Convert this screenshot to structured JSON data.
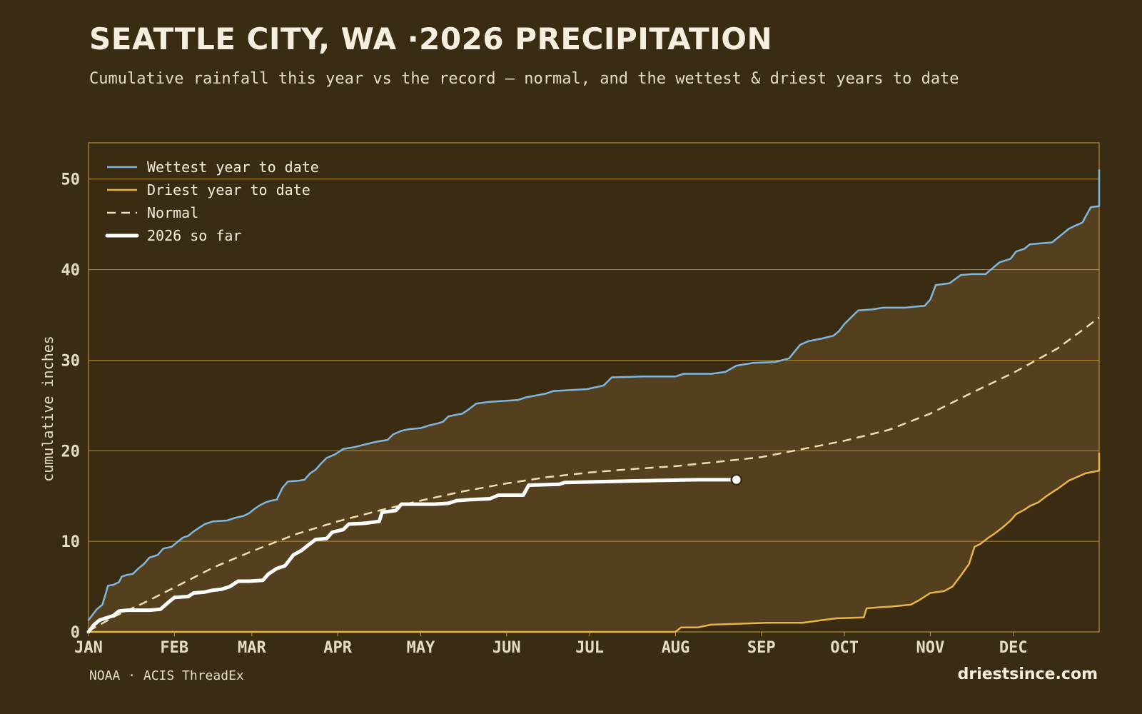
{
  "header": {
    "title": "SEATTLE CITY, WA ·2026 PRECIPITATION",
    "subtitle": "Cumulative rainfall this year vs the record — normal, and the wettest & driest years to date"
  },
  "footer": {
    "source": "NOAA · ACIS ThreadEx",
    "brand": "driestsince.com"
  },
  "colors": {
    "background": "#3a2c13",
    "band": "#54401e",
    "wettest": "#7fb7e0",
    "driest": "#e8b445",
    "normal": "#efdcb0",
    "current": "#ffffff",
    "grid": "#c9a23e"
  },
  "chart_data": {
    "type": "line",
    "title": "SEATTLE CITY, WA ·2026 PRECIPITATION",
    "ylabel": "cumulative inches",
    "xlabel": "",
    "ylim": [
      0,
      54
    ],
    "xlim": [
      0,
      365
    ],
    "grid": true,
    "legend_position": "top-left",
    "x_ticks": [
      {
        "day": 0,
        "label": "JAN"
      },
      {
        "day": 31,
        "label": "FEB"
      },
      {
        "day": 59,
        "label": "MAR"
      },
      {
        "day": 90,
        "label": "APR"
      },
      {
        "day": 120,
        "label": "MAY"
      },
      {
        "day": 151,
        "label": "JUN"
      },
      {
        "day": 181,
        "label": "JUL"
      },
      {
        "day": 212,
        "label": "AUG"
      },
      {
        "day": 243,
        "label": "SEP"
      },
      {
        "day": 273,
        "label": "OCT"
      },
      {
        "day": 304,
        "label": "NOV"
      },
      {
        "day": 334,
        "label": "DEC"
      }
    ],
    "y_ticks": [
      0,
      10,
      20,
      30,
      40,
      50
    ],
    "series": [
      {
        "name": "Wettest year to date",
        "key": "wettest",
        "style": "solid",
        "points": [
          [
            0,
            1.3
          ],
          [
            3,
            2.5
          ],
          [
            5,
            3
          ],
          [
            6,
            4
          ],
          [
            7,
            5.1
          ],
          [
            9,
            5.2
          ],
          [
            11,
            5.5
          ],
          [
            12,
            6.1
          ],
          [
            14,
            6.3
          ],
          [
            16,
            6.4
          ],
          [
            18,
            7
          ],
          [
            20,
            7.5
          ],
          [
            22,
            8.2
          ],
          [
            25,
            8.5
          ],
          [
            27,
            9.2
          ],
          [
            30,
            9.4
          ],
          [
            32,
            9.9
          ],
          [
            34,
            10.4
          ],
          [
            36,
            10.6
          ],
          [
            38,
            11.1
          ],
          [
            40,
            11.5
          ],
          [
            42,
            11.9
          ],
          [
            45,
            12.2
          ],
          [
            50,
            12.3
          ],
          [
            53,
            12.6
          ],
          [
            56,
            12.8
          ],
          [
            58,
            13.1
          ],
          [
            60,
            13.6
          ],
          [
            62,
            14
          ],
          [
            64,
            14.3
          ],
          [
            66,
            14.5
          ],
          [
            68,
            14.6
          ],
          [
            70,
            15.9
          ],
          [
            72,
            16.6
          ],
          [
            76,
            16.7
          ],
          [
            78,
            16.8
          ],
          [
            80,
            17.5
          ],
          [
            82,
            17.9
          ],
          [
            84,
            18.6
          ],
          [
            86,
            19.2
          ],
          [
            89,
            19.6
          ],
          [
            92,
            20.2
          ],
          [
            96,
            20.4
          ],
          [
            100,
            20.7
          ],
          [
            104,
            21
          ],
          [
            108,
            21.2
          ],
          [
            110,
            21.8
          ],
          [
            113,
            22.2
          ],
          [
            116,
            22.4
          ],
          [
            120,
            22.5
          ],
          [
            123,
            22.8
          ],
          [
            126,
            23
          ],
          [
            128,
            23.2
          ],
          [
            130,
            23.8
          ],
          [
            135,
            24.1
          ],
          [
            137,
            24.5
          ],
          [
            140,
            25.2
          ],
          [
            145,
            25.4
          ],
          [
            150,
            25.5
          ],
          [
            155,
            25.6
          ],
          [
            158,
            25.9
          ],
          [
            165,
            26.3
          ],
          [
            168,
            26.6
          ],
          [
            180,
            26.8
          ],
          [
            186,
            27.2
          ],
          [
            189,
            28.1
          ],
          [
            200,
            28.2
          ],
          [
            212,
            28.2
          ],
          [
            215,
            28.5
          ],
          [
            225,
            28.5
          ],
          [
            230,
            28.7
          ],
          [
            234,
            29.4
          ],
          [
            240,
            29.7
          ],
          [
            248,
            29.8
          ],
          [
            253,
            30.2
          ],
          [
            257,
            31.7
          ],
          [
            260,
            32.1
          ],
          [
            265,
            32.4
          ],
          [
            269,
            32.7
          ],
          [
            271,
            33.2
          ],
          [
            273,
            34
          ],
          [
            275,
            34.6
          ],
          [
            278,
            35.5
          ],
          [
            283,
            35.6
          ],
          [
            287,
            35.8
          ],
          [
            295,
            35.8
          ],
          [
            298,
            35.9
          ],
          [
            302,
            36
          ],
          [
            304,
            36.7
          ],
          [
            306,
            38.3
          ],
          [
            311,
            38.5
          ],
          [
            315,
            39.4
          ],
          [
            319,
            39.5
          ],
          [
            324,
            39.5
          ],
          [
            329,
            40.8
          ],
          [
            333,
            41.2
          ],
          [
            335,
            42
          ],
          [
            338,
            42.3
          ],
          [
            340,
            42.8
          ],
          [
            348,
            43
          ],
          [
            352,
            44
          ],
          [
            354,
            44.5
          ],
          [
            356,
            44.8
          ],
          [
            359,
            45.2
          ],
          [
            360,
            45.8
          ],
          [
            362,
            46.9
          ],
          [
            366,
            47
          ],
          [
            368,
            49
          ],
          [
            370,
            51
          ]
        ]
      },
      {
        "name": "Driest year to date",
        "key": "driest",
        "style": "solid",
        "points": [
          [
            0,
            0
          ],
          [
            200,
            0
          ],
          [
            212,
            0
          ],
          [
            214,
            0.5
          ],
          [
            220,
            0.5
          ],
          [
            225,
            0.8
          ],
          [
            245,
            1
          ],
          [
            258,
            1
          ],
          [
            265,
            1.3
          ],
          [
            270,
            1.5
          ],
          [
            280,
            1.6
          ],
          [
            281,
            2.6
          ],
          [
            285,
            2.7
          ],
          [
            290,
            2.8
          ],
          [
            297,
            3
          ],
          [
            300,
            3.5
          ],
          [
            304,
            4.3
          ],
          [
            309,
            4.5
          ],
          [
            312,
            5
          ],
          [
            315,
            6.2
          ],
          [
            318,
            7.5
          ],
          [
            320,
            9.4
          ],
          [
            322,
            9.7
          ],
          [
            325,
            10.4
          ],
          [
            327,
            10.8
          ],
          [
            330,
            11.5
          ],
          [
            333,
            12.3
          ],
          [
            335,
            13
          ],
          [
            338,
            13.5
          ],
          [
            340,
            13.9
          ],
          [
            343,
            14.3
          ],
          [
            346,
            15
          ],
          [
            348,
            15.4
          ],
          [
            350,
            15.8
          ],
          [
            354,
            16.7
          ],
          [
            357,
            17.1
          ],
          [
            360,
            17.5
          ],
          [
            366,
            17.8
          ],
          [
            369,
            18.2
          ],
          [
            370,
            19.7
          ]
        ]
      },
      {
        "name": "Normal",
        "key": "normal",
        "style": "dashed",
        "points": [
          [
            0,
            0.1
          ],
          [
            10,
            1.8
          ],
          [
            20,
            3.2
          ],
          [
            31,
            4.9
          ],
          [
            45,
            7.1
          ],
          [
            59,
            8.9
          ],
          [
            75,
            10.8
          ],
          [
            90,
            12.2
          ],
          [
            105,
            13.4
          ],
          [
            120,
            14.5
          ],
          [
            135,
            15.5
          ],
          [
            151,
            16.4
          ],
          [
            166,
            17.1
          ],
          [
            181,
            17.6
          ],
          [
            197,
            18
          ],
          [
            212,
            18.3
          ],
          [
            228,
            18.8
          ],
          [
            243,
            19.3
          ],
          [
            258,
            20.2
          ],
          [
            273,
            21.1
          ],
          [
            289,
            22.3
          ],
          [
            304,
            24.1
          ],
          [
            319,
            26.4
          ],
          [
            334,
            28.6
          ],
          [
            350,
            31.3
          ],
          [
            365,
            34.7
          ]
        ]
      },
      {
        "name": "2026 so far",
        "key": "current",
        "style": "thick",
        "points": [
          [
            0,
            0
          ],
          [
            2,
            0.8
          ],
          [
            4,
            1.3
          ],
          [
            6,
            1.5
          ],
          [
            9,
            1.8
          ],
          [
            11,
            2.3
          ],
          [
            14,
            2.4
          ],
          [
            22,
            2.4
          ],
          [
            26,
            2.5
          ],
          [
            29,
            3.3
          ],
          [
            31,
            3.8
          ],
          [
            36,
            3.9
          ],
          [
            38,
            4.3
          ],
          [
            42,
            4.4
          ],
          [
            45,
            4.6
          ],
          [
            48,
            4.7
          ],
          [
            51,
            5.0
          ],
          [
            54,
            5.6
          ],
          [
            58,
            5.6
          ],
          [
            63,
            5.7
          ],
          [
            65,
            6.4
          ],
          [
            68,
            7
          ],
          [
            71,
            7.3
          ],
          [
            74,
            8.5
          ],
          [
            77,
            9
          ],
          [
            79,
            9.5
          ],
          [
            82,
            10.2
          ],
          [
            86,
            10.3
          ],
          [
            88,
            11
          ],
          [
            92,
            11.3
          ],
          [
            94,
            11.9
          ],
          [
            100,
            12
          ],
          [
            105,
            12.2
          ],
          [
            106,
            13.2
          ],
          [
            111,
            13.4
          ],
          [
            113,
            14.1
          ],
          [
            125,
            14.1
          ],
          [
            130,
            14.2
          ],
          [
            133,
            14.5
          ],
          [
            138,
            14.6
          ],
          [
            145,
            14.7
          ],
          [
            148,
            15.1
          ],
          [
            157,
            15.1
          ],
          [
            159,
            16.2
          ],
          [
            170,
            16.3
          ],
          [
            172,
            16.5
          ],
          [
            188,
            16.6
          ],
          [
            201,
            16.7
          ],
          [
            220,
            16.8
          ],
          [
            234,
            16.8
          ]
        ]
      }
    ],
    "end_marker": {
      "series": "2026 so far",
      "day": 234,
      "value": 16.8
    }
  }
}
